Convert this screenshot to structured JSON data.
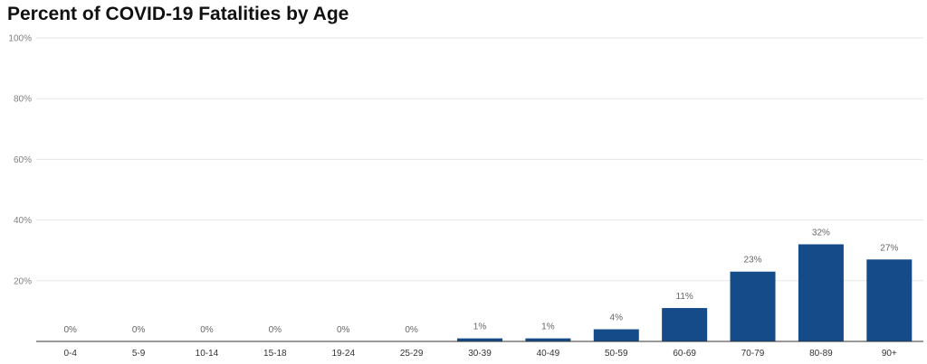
{
  "title": "Percent of COVID-19 Fatalities by Age",
  "colors": {
    "bar": "#164b8a",
    "grid": "#e6e6e6",
    "axis": "#333333"
  },
  "chart_data": {
    "type": "bar",
    "title": "Percent of COVID-19 Fatalities by Age",
    "xlabel": "",
    "ylabel": "",
    "ylim": [
      0,
      100
    ],
    "yticks": [
      20,
      40,
      60,
      80,
      100
    ],
    "ytick_labels": [
      "20%",
      "40%",
      "60%",
      "80%",
      "100%"
    ],
    "grid": true,
    "legend": "none",
    "categories": [
      "0-4",
      "5-9",
      "10-14",
      "15-18",
      "19-24",
      "25-29",
      "30-39",
      "40-49",
      "50-59",
      "60-69",
      "70-79",
      "80-89",
      "90+"
    ],
    "values": [
      0,
      0,
      0,
      0,
      0,
      0,
      1,
      1,
      4,
      11,
      23,
      32,
      27
    ],
    "data_labels": [
      "0%",
      "0%",
      "0%",
      "0%",
      "0%",
      "0%",
      "1%",
      "1%",
      "4%",
      "11%",
      "23%",
      "32%",
      "27%"
    ]
  }
}
